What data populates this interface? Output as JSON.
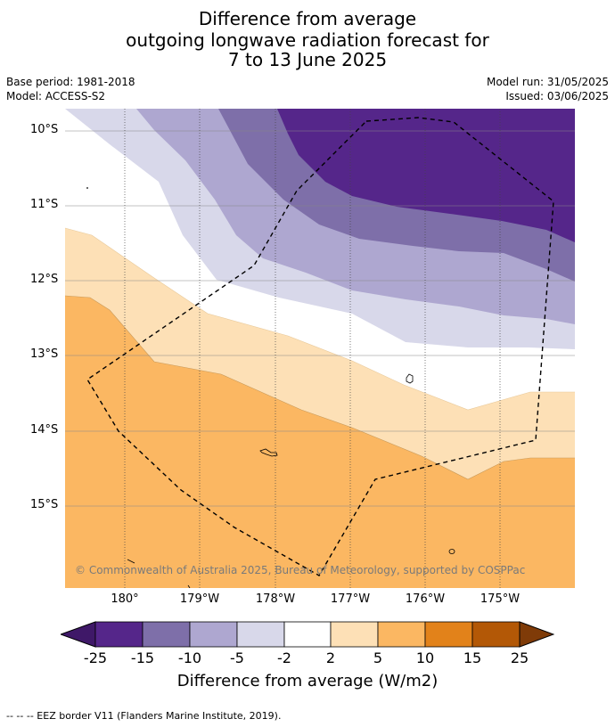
{
  "title": {
    "line1": "Difference from average",
    "line2": "outgoing longwave radiation forecast for",
    "line3": "7 to 13 June 2025"
  },
  "meta_left": {
    "base_period": "Base period: 1981-2018",
    "model": "Model: ACCESS-S2"
  },
  "meta_right": {
    "model_run": "Model run: 31/05/2025",
    "issued": "Issued: 03/06/2025"
  },
  "lat_labels": [
    "10°S",
    "11°S",
    "12°S",
    "13°S",
    "14°S",
    "15°S"
  ],
  "lon_labels": [
    "180°",
    "179°W",
    "178°W",
    "177°W",
    "176°W",
    "175°W"
  ],
  "copyright": "© Commonwealth of Australia 2025, Bureau of Meteorology, supported by COSPPac",
  "colorbar": {
    "ticks": [
      "-25",
      "-15",
      "-10",
      "-5",
      "-2",
      "2",
      "5",
      "10",
      "15",
      "25"
    ],
    "colors": [
      "#3f1868",
      "#55268a",
      "#7e6fa9",
      "#aea7d0",
      "#d8d8ea",
      "#ffffff",
      "#fde0b6",
      "#fbb762",
      "#e2821a",
      "#b35806",
      "#7f3b08"
    ],
    "title": "Difference from average (W/m2)"
  },
  "footer": "--  --  -- EEZ border V11 (Flanders Marine Institute, 2019)."
}
